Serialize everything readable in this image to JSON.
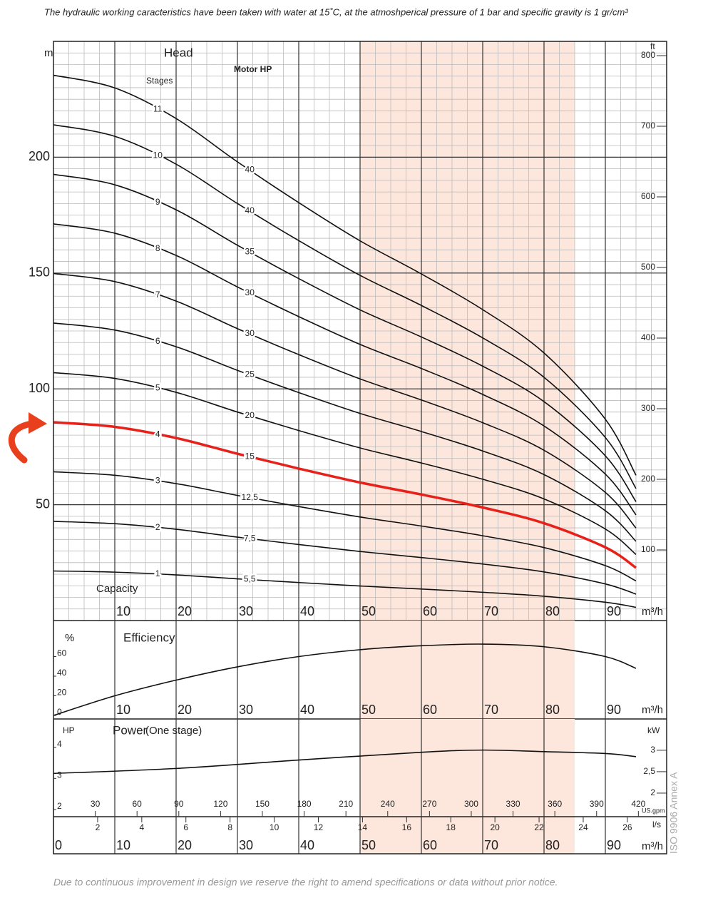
{
  "page": {
    "note": "The hydraulic working caracteristics have been taken with water at 15˚C, at the atmoshperical pressure of 1 bar and specific gravity is 1 gr/cm³",
    "footer": "Due to continuous improvement in design we reserve the right to amend specifications or data without prior notice.",
    "side_label": "ISO 9906 Annex A"
  },
  "chart_data": [
    {
      "type": "line",
      "title": "Head",
      "y_label": "m",
      "y2_label": "ft",
      "x_label": "Capacity",
      "x_unit": "m³/h",
      "series_label": "Stages",
      "annotation_label": "Motor HP",
      "highlight": [
        50,
        85
      ],
      "grid": true,
      "xlim": [
        0,
        100
      ],
      "xticks": [
        10,
        20,
        30,
        40,
        50,
        60,
        70,
        80,
        90
      ],
      "ylim": [
        0,
        250
      ],
      "yticks": [
        50,
        100,
        150,
        200
      ],
      "y2lim": [
        0,
        820.2
      ],
      "y2ticks": [
        100,
        200,
        300,
        400,
        500,
        600,
        700,
        800
      ],
      "x": [
        0,
        10,
        20,
        30,
        40,
        50,
        60,
        70,
        80,
        90,
        95
      ],
      "series": [
        {
          "name": "1",
          "motor_hp": "5,5",
          "color": "#111111",
          "values": [
            21.4,
            20.9,
            19.7,
            18,
            16.4,
            14.9,
            13.6,
            12.2,
            10.5,
            7.9,
            5.7
          ]
        },
        {
          "name": "2",
          "motor_hp": "7,5",
          "color": "#111111",
          "values": [
            42.8,
            41.8,
            39.4,
            36,
            32.8,
            29.8,
            27.2,
            24.4,
            21,
            15.8,
            11.4
          ]
        },
        {
          "name": "3",
          "motor_hp": "12,5",
          "color": "#111111",
          "values": [
            64.2,
            62.7,
            59.1,
            54,
            49.2,
            44.7,
            40.8,
            36.6,
            31.5,
            23.7,
            17.1
          ]
        },
        {
          "name": "4",
          "motor_hp": "15",
          "color": "#e8201a",
          "values": [
            85.6,
            83.6,
            78.8,
            72,
            65.6,
            59.6,
            54.4,
            48.8,
            42,
            31.6,
            22.8
          ]
        },
        {
          "name": "5",
          "motor_hp": "20",
          "color": "#111111",
          "values": [
            107,
            104.5,
            98.5,
            90,
            82,
            74.5,
            68,
            61,
            52.5,
            39.5,
            28.5
          ]
        },
        {
          "name": "6",
          "motor_hp": "25",
          "color": "#111111",
          "values": [
            128.4,
            125.4,
            118.2,
            108,
            98.4,
            89.4,
            81.6,
            73.2,
            63,
            47.4,
            34.2
          ]
        },
        {
          "name": "7",
          "motor_hp": "30",
          "color": "#111111",
          "values": [
            149.8,
            146.3,
            137.9,
            126,
            114.8,
            104.3,
            95.2,
            85.4,
            73.5,
            55.3,
            39.9
          ]
        },
        {
          "name": "8",
          "motor_hp": "30",
          "color": "#111111",
          "values": [
            171.2,
            167.2,
            157.6,
            144,
            131.2,
            119.2,
            108.8,
            97.6,
            84,
            63.2,
            45.6
          ]
        },
        {
          "name": "9",
          "motor_hp": "35",
          "color": "#111111",
          "values": [
            192.6,
            188.1,
            177.3,
            162,
            147.6,
            134.1,
            122.4,
            109.8,
            94.5,
            71.1,
            51.3
          ]
        },
        {
          "name": "10",
          "motor_hp": "40",
          "color": "#111111",
          "values": [
            214,
            209,
            197,
            180,
            164,
            149,
            136,
            122,
            105,
            79,
            57
          ]
        },
        {
          "name": "11",
          "motor_hp": "40",
          "color": "#111111",
          "values": [
            235.4,
            229.9,
            216.7,
            198,
            180.4,
            163.9,
            149.6,
            134.2,
            115.5,
            86.9,
            62.7
          ]
        }
      ]
    },
    {
      "type": "line",
      "title": "Efficiency",
      "y_label": "%",
      "x_unit": "m³/h",
      "xlim": [
        0,
        100
      ],
      "xticks": [
        10,
        20,
        30,
        40,
        50,
        60,
        70,
        80,
        90
      ],
      "ylim": [
        -3.6,
        96.7
      ],
      "yticks": [
        0,
        20,
        40,
        60
      ],
      "x": [
        0,
        10,
        20,
        30,
        40,
        50,
        60,
        70,
        80,
        90,
        95
      ],
      "series": [
        {
          "color": "#111111",
          "values": [
            0,
            20,
            36,
            49.5,
            60,
            67,
            71,
            72.7,
            70,
            60,
            48
          ]
        }
      ]
    },
    {
      "type": "line",
      "title": "Power",
      "subtitle": "(One stage)",
      "y_label": "HP",
      "y2_label": "kW",
      "x_unit": "m³/h",
      "x2_unit": "US.gpm",
      "x3_unit": "l/s",
      "xlim": [
        0,
        100
      ],
      "xticks": [
        0,
        10,
        20,
        30,
        40,
        50,
        60,
        70,
        80,
        90
      ],
      "x2lim": [
        0,
        440.3
      ],
      "x2ticks": [
        30,
        60,
        90,
        120,
        150,
        180,
        210,
        240,
        270,
        300,
        330,
        360,
        390,
        420
      ],
      "x3lim": [
        0,
        27.78
      ],
      "x3ticks": [
        2,
        4,
        6,
        8,
        10,
        12,
        14,
        16,
        18,
        20,
        22,
        24,
        26
      ],
      "ylim": [
        1.77,
        4.91
      ],
      "yticks": [
        2,
        3,
        4
      ],
      "y2lim": [
        1.45,
        3.73
      ],
      "y2ticks": [
        2,
        {
          "value": 2.5,
          "label": "2,5"
        },
        3
      ],
      "x": [
        0,
        20,
        40,
        60,
        70,
        80,
        90,
        95
      ],
      "series": [
        {
          "color": "#111111",
          "values": [
            3.16,
            3.32,
            3.59,
            3.84,
            3.91,
            3.86,
            3.8,
            3.7
          ]
        }
      ]
    }
  ]
}
